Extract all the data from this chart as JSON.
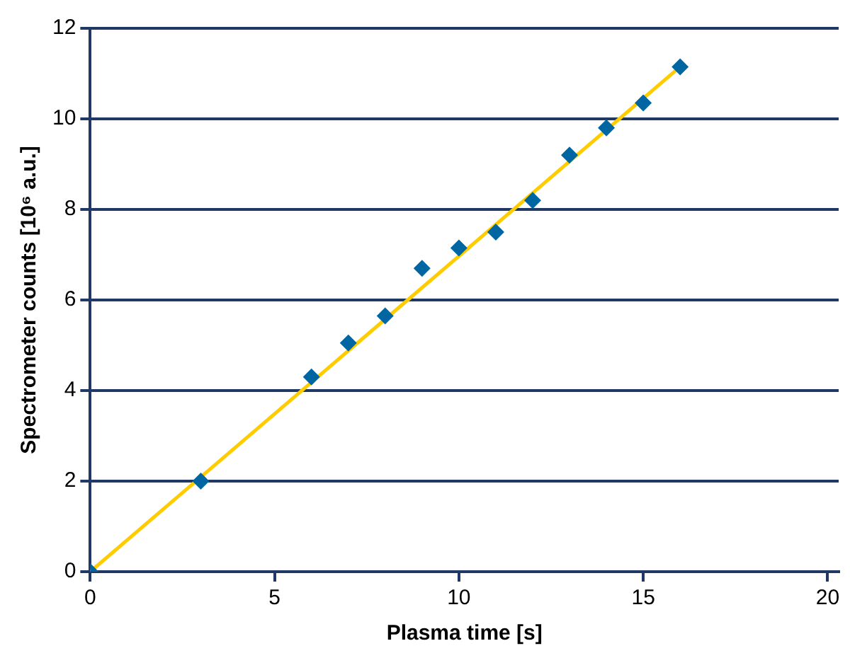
{
  "chart_data": {
    "type": "scatter",
    "xlabel": "Plasma time [s]",
    "ylabel": "Spectrometer counts [10⁶ a.u.]",
    "xlim": [
      0,
      20.3
    ],
    "xticks": [
      0,
      5,
      10,
      15,
      20
    ],
    "ylim": [
      0,
      12
    ],
    "yticks": [
      0,
      2,
      4,
      6,
      8,
      10,
      12
    ],
    "grid": "y",
    "legend": false,
    "marker": "diamond",
    "series": [
      {
        "color": "#0066a1",
        "x": [
          0,
          3,
          6,
          7,
          8,
          9,
          10,
          11,
          12,
          13,
          14,
          15,
          16
        ],
        "values": [
          0,
          2.0,
          4.3,
          5.05,
          5.65,
          6.7,
          7.15,
          7.5,
          8.2,
          9.2,
          9.8,
          10.35,
          11.15
        ]
      },
      {
        "type": "line",
        "color": "#ffcc00",
        "x": [
          0,
          16
        ],
        "values": [
          0,
          11.15
        ],
        "marker": "none",
        "line_style": "solid"
      }
    ]
  }
}
